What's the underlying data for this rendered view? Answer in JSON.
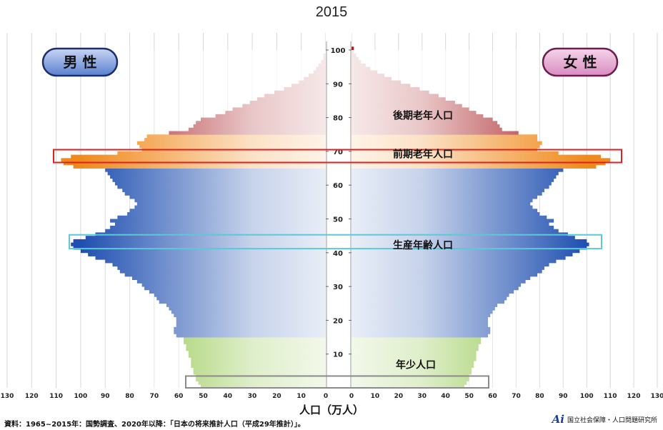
{
  "chart_data": {
    "type": "bar",
    "orientation": "horizontal",
    "title": "2015",
    "xlabel": "人口（万人）",
    "xlim": [
      0,
      130
    ],
    "x_ticks": [
      130,
      120,
      110,
      100,
      90,
      80,
      70,
      60,
      50,
      40,
      30,
      20,
      10,
      0
    ],
    "y_ticks": [
      10,
      20,
      30,
      40,
      50,
      60,
      70,
      80,
      90,
      100
    ],
    "ylim": [
      0,
      100
    ],
    "grid": true,
    "legend": [
      {
        "name": "男 性",
        "color": "#5a7fd0"
      },
      {
        "name": "女 性",
        "color": "#d98cc0"
      }
    ],
    "series": [
      {
        "name": "男 性",
        "ages": [
          0,
          1,
          2,
          3,
          4,
          5,
          6,
          7,
          8,
          9,
          10,
          11,
          12,
          13,
          14,
          15,
          16,
          17,
          18,
          19,
          20,
          21,
          22,
          23,
          24,
          25,
          26,
          27,
          28,
          29,
          30,
          31,
          32,
          33,
          34,
          35,
          36,
          37,
          38,
          39,
          40,
          41,
          42,
          43,
          44,
          45,
          46,
          47,
          48,
          49,
          50,
          51,
          52,
          53,
          54,
          55,
          56,
          57,
          58,
          59,
          60,
          61,
          62,
          63,
          64,
          65,
          66,
          67,
          68,
          69,
          70,
          71,
          72,
          73,
          74,
          75,
          76,
          77,
          78,
          79,
          80,
          81,
          82,
          83,
          84,
          85,
          86,
          87,
          88,
          89,
          90,
          91,
          92,
          93,
          94,
          95,
          96,
          97,
          98,
          99,
          100
        ],
        "values": [
          51,
          52,
          53,
          53,
          54,
          54,
          55,
          55,
          55,
          56,
          56,
          57,
          57,
          58,
          58,
          61,
          62,
          62,
          61,
          61,
          61,
          62,
          63,
          64,
          65,
          68,
          69,
          70,
          72,
          74,
          75,
          77,
          79,
          82,
          84,
          85,
          87,
          90,
          94,
          97,
          100,
          103,
          104,
          103,
          98,
          94,
          90,
          88,
          86,
          88,
          85,
          81,
          80,
          78,
          77,
          78,
          80,
          82,
          83,
          85,
          86,
          87,
          88,
          89,
          90,
          103,
          107,
          108,
          104,
          85,
          75,
          76,
          77,
          74,
          73,
          64,
          56,
          54,
          53,
          51,
          45,
          41,
          38,
          34,
          31,
          28,
          25,
          21,
          17,
          14,
          11,
          9,
          7,
          5,
          4,
          3,
          2,
          1,
          1,
          0,
          0
        ]
      },
      {
        "name": "女 性",
        "ages": [
          0,
          1,
          2,
          3,
          4,
          5,
          6,
          7,
          8,
          9,
          10,
          11,
          12,
          13,
          14,
          15,
          16,
          17,
          18,
          19,
          20,
          21,
          22,
          23,
          24,
          25,
          26,
          27,
          28,
          29,
          30,
          31,
          32,
          33,
          34,
          35,
          36,
          37,
          38,
          39,
          40,
          41,
          42,
          43,
          44,
          45,
          46,
          47,
          48,
          49,
          50,
          51,
          52,
          53,
          54,
          55,
          56,
          57,
          58,
          59,
          60,
          61,
          62,
          63,
          64,
          65,
          66,
          67,
          68,
          69,
          70,
          71,
          72,
          73,
          74,
          75,
          76,
          77,
          78,
          79,
          80,
          81,
          82,
          83,
          84,
          85,
          86,
          87,
          88,
          89,
          90,
          91,
          92,
          93,
          94,
          95,
          96,
          97,
          98,
          99,
          100
        ],
        "values": [
          48,
          49,
          50,
          50,
          51,
          51,
          52,
          52,
          53,
          53,
          53,
          54,
          54,
          55,
          55,
          58,
          59,
          59,
          58,
          58,
          58,
          59,
          60,
          61,
          62,
          65,
          66,
          67,
          69,
          71,
          72,
          74,
          76,
          79,
          81,
          82,
          84,
          87,
          91,
          94,
          97,
          100,
          101,
          100,
          95,
          92,
          88,
          86,
          84,
          86,
          83,
          80,
          79,
          77,
          76,
          77,
          79,
          81,
          82,
          84,
          85,
          86,
          87,
          88,
          90,
          104,
          108,
          110,
          106,
          88,
          79,
          80,
          81,
          79,
          79,
          71,
          64,
          63,
          62,
          60,
          56,
          53,
          50,
          47,
          44,
          40,
          37,
          33,
          29,
          25,
          21,
          17,
          14,
          11,
          8,
          6,
          4,
          3,
          2,
          1,
          1
        ]
      }
    ],
    "annotations": [
      "後期老年人口",
      "前期老年人口",
      "生産年齢人口",
      "年少人口"
    ],
    "colors": {
      "late_elderly": "#a81e22",
      "early_elderly": "#f08a1c",
      "working": "#1f4fb0",
      "youth": "#7dbc2a",
      "highlight_red": "#e02020",
      "highlight_cyan": "#5cc8d8",
      "highlight_gray": "#8a8a8a"
    }
  },
  "source": "資料：1965~2015年：国勢調査、2020年以降：「日本の将来推計人口（平成29年推計）」。",
  "credit": "国立社会保障・人口問題研究所",
  "logo_text": "Ai"
}
